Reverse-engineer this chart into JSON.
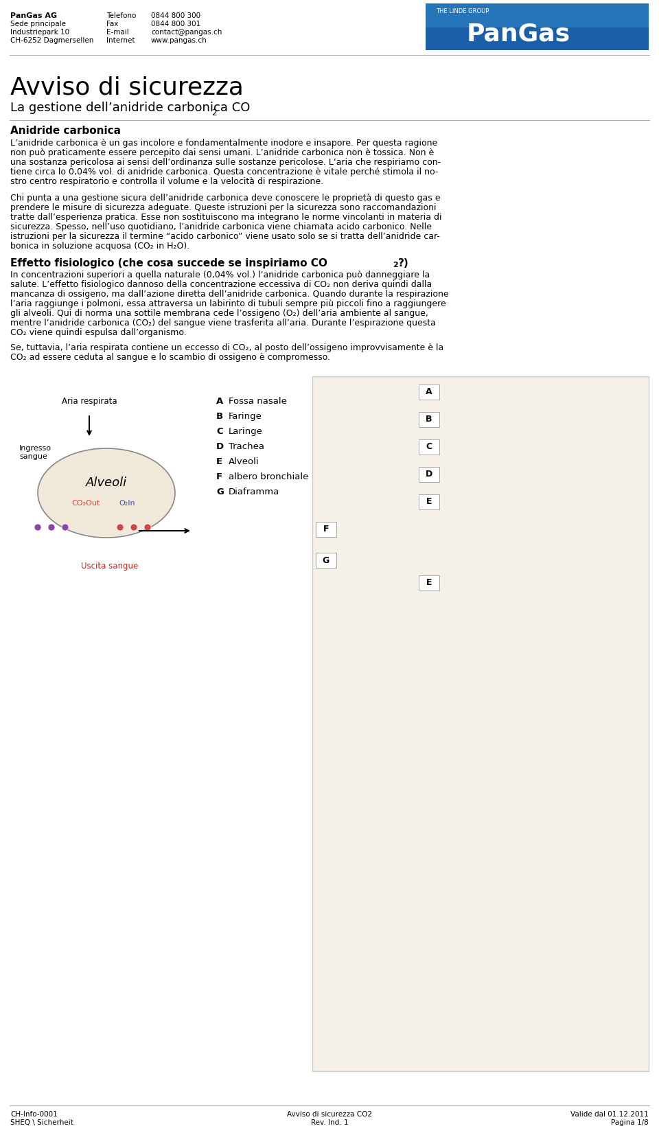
{
  "bg_color": "#ffffff",
  "header": {
    "company": "PanGas AG",
    "addr1": "Sede principale",
    "addr2": "Industriepark 10",
    "addr3": "CH-6252 Dagmersellen",
    "tel_label": "Telefono",
    "tel_val": "0844 800 300",
    "fax_label": "Fax",
    "fax_val": "0844 800 301",
    "email_label": "E-mail",
    "email_val": "contact@pangas.ch",
    "inet_label": "Internet",
    "inet_val": "www.pangas.ch",
    "logo_bg": "#1a5fa8",
    "logo_text": "PanGas",
    "logo_sub": "THE LINDE GROUP"
  },
  "title_main": "Avviso di sicurezza",
  "title_sub": "La gestione dell’anidride carbonica CO",
  "title_sub2": "2",
  "section1_head": "Anidride carbonica",
  "section1_p1": "L’anidride carbonica è un gas incolore e fondamentalmente inodore e insapore. Per questa ragione\nnon può praticamente essere percepito dai sensi umani. L’anidride carbonica non è tossica. Non è\nuna sostanza pericolosa ai sensi dell’ordinanza sulle sostanze pericolose. L’aria che respiriamo con-\ntiene circa lo 0,04% vol. di anidride carbonica. Questa concentrazione è vitale perché stimola il no-\nstro centro respiratorio e controlla il volume e la velocità di respirazione.",
  "section1_p2": "Chi punta a una gestione sicura dell’anidride carbonica deve conoscere le proprietà di questo gas e\nprendere le misure di sicurezza adeguate. Queste istruzioni per la sicurezza sono raccomandazioni\ntratte dall’esperienza pratica. Esse non sostituiscono ma integrano le norme vincolanti in materia di\nsicurezza. Spesso, nell’uso quotidiano, l’anidride carbonica viene chiamata acido carbonico. Nelle\nistruzioni per la sicurezza il termine “acido carbonico” viene usato solo se si tratta dell’anidride car-\nbonica in soluzione acquosa (CO₂ in H₂O).",
  "section2_head": "Effetto fisiologico (che cosa succede se inspiriamo CO",
  "section2_head2": "2",
  "section2_head3": "?)",
  "section2_p1": "In concentrazioni superiori a quella naturale (0,04% vol.) l’anidride carbonica può danneggiare la\nsalute. L’effetto fisiologico dannoso della concentrazione eccessiva di CO₂ non deriva quindi dalla\nmancanza di ossigeno, ma dall’azione diretta dell’anidride carbonica. Quando durante la respirazione\nl’aria raggiunge i polmoni, essa attraversa un labirinto di tubuli sempre più piccoli fino a raggiungere\ngli alveoli. Qui di norma una sottile membrana cede l’ossigeno (O₂) dell’aria ambiente al sangue,\nmentre l’anidride carbonica (CO₂) del sangue viene trasferita all’aria. Durante l’espirazione questa\nCO₂ viene quindi espulsa dall’organismo.",
  "section2_p2": "Se, tuttavia, l’aria respirata contiene un eccesso di CO₂, al posto dell’ossigeno improvvisamente è la\nCO₂ ad essere ceduta al sangue e lo scambio di ossigeno è compromesso.",
  "legend_items": [
    [
      "A",
      "Fossa nasale"
    ],
    [
      "B",
      "Faringe"
    ],
    [
      "C",
      "Laringe"
    ],
    [
      "D",
      "Trachea"
    ],
    [
      "E",
      "Alveoli"
    ],
    [
      "F",
      "albero bronchiale"
    ],
    [
      "G",
      "Diaframma"
    ]
  ],
  "left_diagram_labels": {
    "aria_respirata": "Aria respirata",
    "ingresso_sangue": "Ingresso\nsangue",
    "alveoli": "Alveoli",
    "co2out": "CO₂Out",
    "o2in": "O₂In",
    "uscita_sangue": "Uscita sangue"
  },
  "footer": {
    "left1": "CH-Info-0001",
    "left2": "SHEQ \\ Sicherheit",
    "center1": "Avviso di sicurezza CO2",
    "center2": "Rev. Ind. 1",
    "right1": "Valide dal 01.12.2011",
    "right2": "Pagina 1/8"
  },
  "separator_color": "#000000",
  "text_color": "#000000",
  "header_text_color": "#000000",
  "font_family": "DejaVu Sans"
}
